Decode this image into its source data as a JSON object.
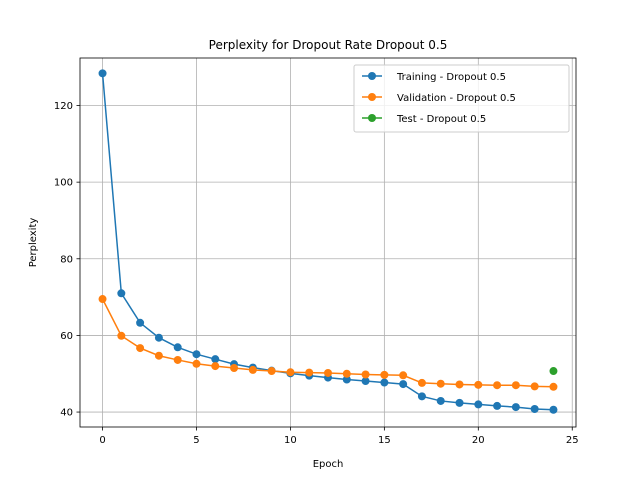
{
  "chart_data": {
    "type": "line",
    "title": "Perplexity for Dropout Rate Dropout 0.5",
    "xlabel": "Epoch",
    "ylabel": "Perplexity",
    "xlim": [
      -1.2,
      25.2
    ],
    "ylim": [
      36.1,
      132.4
    ],
    "xticks": [
      0,
      5,
      10,
      15,
      20,
      25
    ],
    "yticks": [
      40,
      60,
      80,
      100,
      120
    ],
    "grid": true,
    "legend_position": "top-right",
    "series": [
      {
        "name": "Training - Dropout 0.5",
        "color": "#1f77b4",
        "x": [
          0,
          1,
          2,
          3,
          4,
          5,
          6,
          7,
          8,
          9,
          10,
          11,
          12,
          13,
          14,
          15,
          16,
          17,
          18,
          19,
          20,
          21,
          22,
          23,
          24
        ],
        "values": [
          128.4,
          71.0,
          63.3,
          59.4,
          56.9,
          55.1,
          53.8,
          52.5,
          51.6,
          50.8,
          50.1,
          49.5,
          49.0,
          48.5,
          48.1,
          47.7,
          47.3,
          44.1,
          42.9,
          42.4,
          42.0,
          41.6,
          41.3,
          40.8,
          40.6
        ]
      },
      {
        "name": "Validation - Dropout 0.5",
        "color": "#ff7f0e",
        "x": [
          0,
          1,
          2,
          3,
          4,
          5,
          6,
          7,
          8,
          9,
          10,
          11,
          12,
          13,
          14,
          15,
          16,
          17,
          18,
          19,
          20,
          21,
          22,
          23,
          24
        ],
        "values": [
          69.5,
          59.9,
          56.7,
          54.7,
          53.6,
          52.6,
          52.0,
          51.5,
          51.0,
          50.7,
          50.4,
          50.3,
          50.2,
          50.0,
          49.8,
          49.7,
          49.6,
          47.6,
          47.4,
          47.2,
          47.1,
          47.0,
          47.0,
          46.7,
          46.6
        ]
      },
      {
        "name": "Test - Dropout 0.5",
        "color": "#2ca02c",
        "x": [
          24
        ],
        "values": [
          50.7
        ]
      }
    ]
  }
}
